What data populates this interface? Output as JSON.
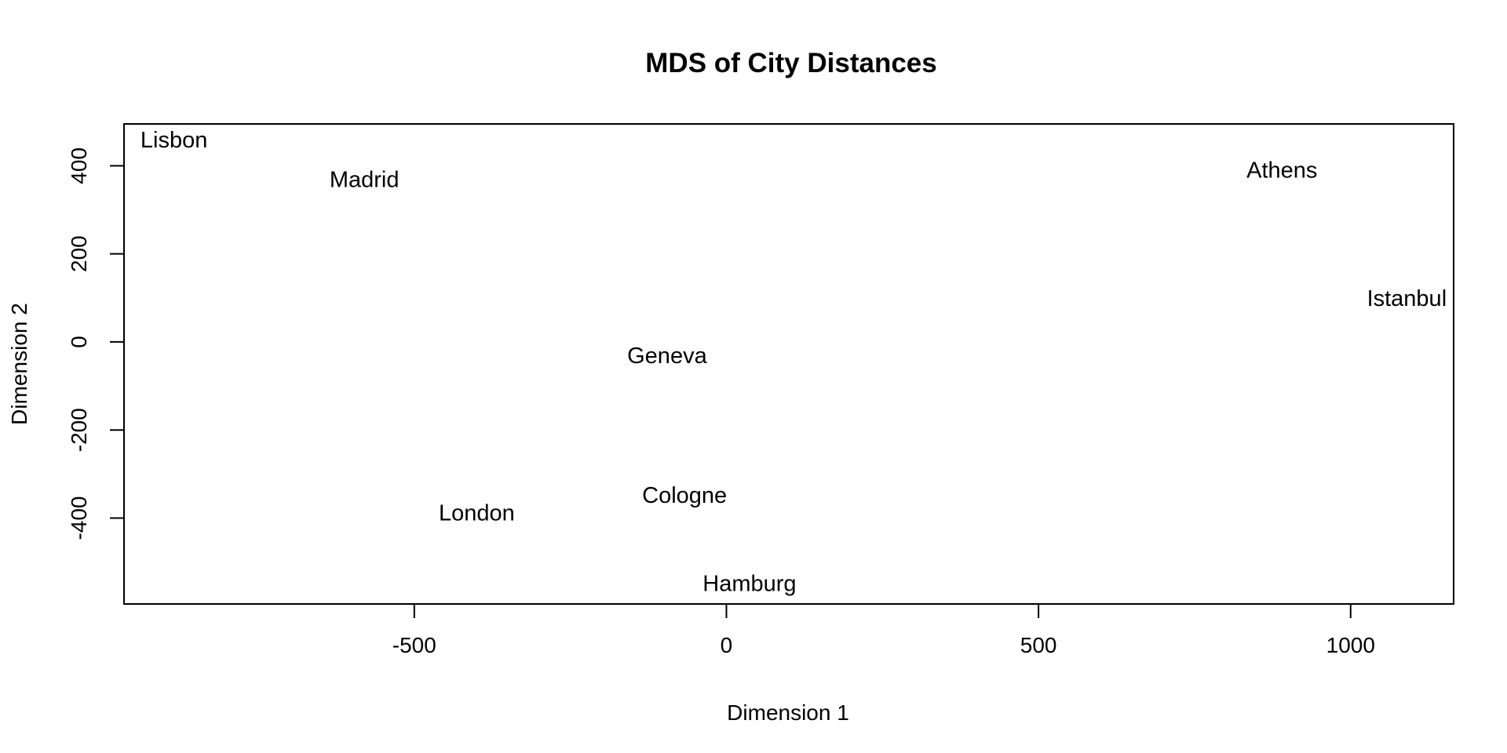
{
  "chart_data": {
    "type": "scatter",
    "title": "MDS of City Distances",
    "xlabel": "Dimension 1",
    "ylabel": "Dimension 2",
    "xlim": [
      -965,
      1165
    ],
    "ylim": [
      -595,
      495
    ],
    "x_ticks": [
      -500,
      0,
      500,
      1000
    ],
    "x_tick_labels": [
      "-500",
      "0",
      "500",
      "1000"
    ],
    "y_ticks": [
      -400,
      -200,
      0,
      200,
      400
    ],
    "y_tick_labels": [
      "-400",
      "-200",
      "0",
      "200",
      "400"
    ],
    "grid": false,
    "legend": "none",
    "markers": "text labels",
    "points": [
      {
        "label": "Lisbon",
        "x": -885,
        "y": 455
      },
      {
        "label": "Madrid",
        "x": -580,
        "y": 365
      },
      {
        "label": "Athens",
        "x": 890,
        "y": 387
      },
      {
        "label": "Istanbul",
        "x": 1090,
        "y": 95
      },
      {
        "label": "Geneva",
        "x": -95,
        "y": -35
      },
      {
        "label": "Cologne",
        "x": -67,
        "y": -352
      },
      {
        "label": "London",
        "x": -400,
        "y": -392
      },
      {
        "label": "Hamburg",
        "x": 37,
        "y": -552
      }
    ]
  }
}
